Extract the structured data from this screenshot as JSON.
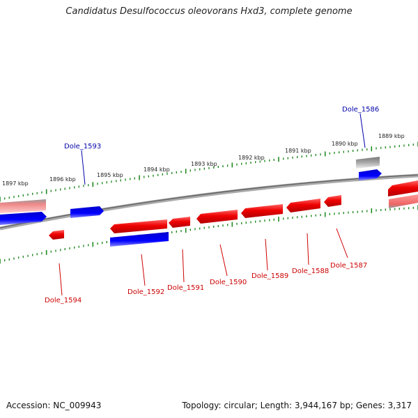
{
  "title": "Candidatus Desulfococcus oleovorans Hxd3, complete genome",
  "footer": {
    "accession": "Accession: NC_009943",
    "stats": "Topology: circular; Length: 3,944,167 bp; Genes: 3,317"
  },
  "colors": {
    "forward_strand": "#ee0000",
    "reverse_strand": "#0000dd",
    "rna_gene": "#999999",
    "ruler": "#228b22",
    "backbone": "#777777"
  },
  "scale_labels": [
    "1889 kbp",
    "1890 kbp",
    "1891 kbp",
    "1892 kbp",
    "1893 kbp",
    "1894 kbp",
    "1895 kbp",
    "1896 kbp",
    "1897 kbp"
  ],
  "genes_top": [
    {
      "label": "Dole_1586",
      "color": "#0000aa"
    },
    {
      "label": "Dole_1593",
      "color": "#0000aa"
    }
  ],
  "genes_bottom": [
    {
      "label": "Dole_1587",
      "color": "#cc0000"
    },
    {
      "label": "Dole_1588",
      "color": "#cc0000"
    },
    {
      "label": "Dole_1589",
      "color": "#cc0000"
    },
    {
      "label": "Dole_1590",
      "color": "#cc0000"
    },
    {
      "label": "Dole_1591",
      "color": "#cc0000"
    },
    {
      "label": "Dole_1592",
      "color": "#cc0000"
    },
    {
      "label": "Dole_1594",
      "color": "#cc0000"
    }
  ]
}
